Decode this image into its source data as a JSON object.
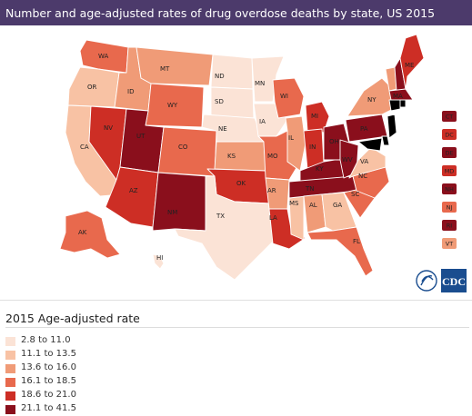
{
  "header": {
    "title": "Number and age-adjusted rates of drug overdose deaths by state, US 2015"
  },
  "legend": {
    "title": "2015 Age-adjusted rate",
    "bins": [
      {
        "label": "2.8 to 11.0",
        "color": "#fbe3d6"
      },
      {
        "label": "11.1 to 13.5",
        "color": "#f8c2a4"
      },
      {
        "label": "13.6 to 16.0",
        "color": "#f09b77"
      },
      {
        "label": "16.1 to 18.5",
        "color": "#e8694d"
      },
      {
        "label": "18.6 to 21.0",
        "color": "#cd2e25"
      },
      {
        "label": "21.1 to 41.5",
        "color": "#8a0f1c"
      }
    ]
  },
  "states": {
    "WA": {
      "label": "WA",
      "bin": 3
    },
    "OR": {
      "label": "OR",
      "bin": 1
    },
    "CA": {
      "label": "CA",
      "bin": 1
    },
    "NV": {
      "label": "NV",
      "bin": 4
    },
    "ID": {
      "label": "ID",
      "bin": 2
    },
    "MT": {
      "label": "MT",
      "bin": 2
    },
    "WY": {
      "label": "WY",
      "bin": 3
    },
    "UT": {
      "label": "UT",
      "bin": 5
    },
    "AZ": {
      "label": "AZ",
      "bin": 4
    },
    "CO": {
      "label": "CO",
      "bin": 3
    },
    "NM": {
      "label": "NM",
      "bin": 5
    },
    "ND": {
      "label": "ND",
      "bin": 0
    },
    "SD": {
      "label": "SD",
      "bin": 0
    },
    "NE": {
      "label": "NE",
      "bin": 0
    },
    "KS": {
      "label": "KS",
      "bin": 2
    },
    "OK": {
      "label": "OK",
      "bin": 4
    },
    "TX": {
      "label": "TX",
      "bin": 0
    },
    "MN": {
      "label": "MN",
      "bin": 0
    },
    "IA": {
      "label": "IA",
      "bin": 0
    },
    "MO": {
      "label": "MO",
      "bin": 3
    },
    "AR": {
      "label": "AR",
      "bin": 2
    },
    "LA": {
      "label": "LA",
      "bin": 4
    },
    "WI": {
      "label": "WI",
      "bin": 3
    },
    "IL": {
      "label": "IL",
      "bin": 2
    },
    "MS": {
      "label": "MS",
      "bin": 1
    },
    "MI": {
      "label": "MI",
      "bin": 4
    },
    "IN": {
      "label": "IN",
      "bin": 4
    },
    "KY": {
      "label": "KY",
      "bin": 5
    },
    "TN": {
      "label": "TN",
      "bin": 5
    },
    "AL": {
      "label": "AL",
      "bin": 2
    },
    "OH": {
      "label": "OH",
      "bin": 5
    },
    "WV": {
      "label": "WV",
      "bin": 5
    },
    "GA": {
      "label": "GA",
      "bin": 1
    },
    "FL": {
      "label": "FL",
      "bin": 3
    },
    "SC": {
      "label": "SC",
      "bin": 3
    },
    "NC": {
      "label": "NC",
      "bin": 3
    },
    "VA": {
      "label": "VA",
      "bin": 1
    },
    "PA": {
      "label": "PA",
      "bin": 5
    },
    "NY": {
      "label": "NY",
      "bin": 2
    },
    "VT": {
      "label": "VT",
      "bin": 2
    },
    "NH": {
      "label": "NH",
      "bin": 5
    },
    "ME": {
      "label": "ME",
      "bin": 4
    },
    "MA": {
      "label": "MA",
      "bin": 5
    },
    "AK": {
      "label": "AK",
      "bin": 3
    },
    "HI": {
      "label": "HI",
      "bin": 0
    }
  },
  "tiles": [
    {
      "label": "CT",
      "bin": 5
    },
    {
      "label": "DC",
      "bin": 4
    },
    {
      "label": "DE",
      "bin": 5
    },
    {
      "label": "MD",
      "bin": 4
    },
    {
      "label": "NH",
      "bin": 5
    },
    {
      "label": "NJ",
      "bin": 3
    },
    {
      "label": "RI",
      "bin": 5
    },
    {
      "label": "VT",
      "bin": 2
    }
  ],
  "logo": {
    "text": "CDC"
  }
}
